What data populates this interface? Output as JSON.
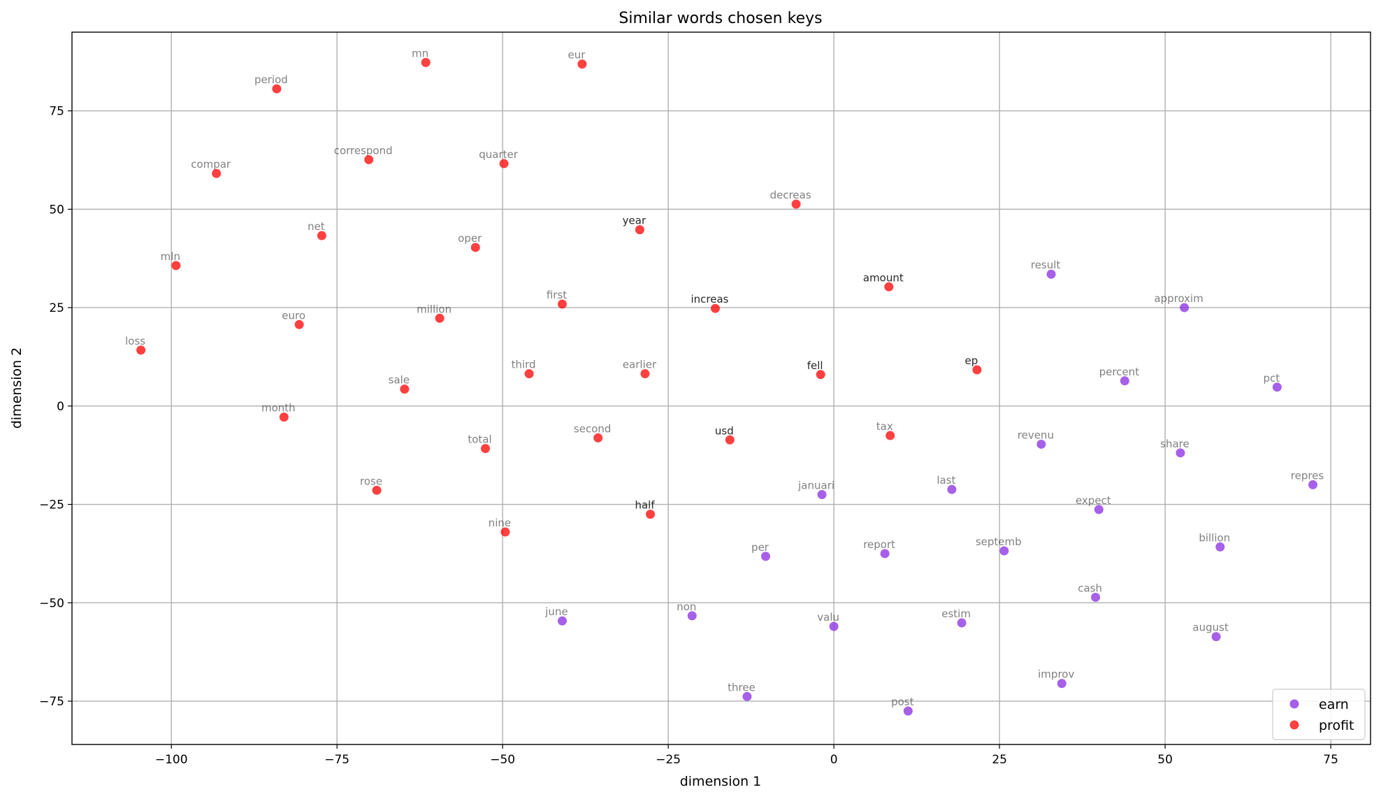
{
  "chart_data": {
    "type": "scatter",
    "title": "Similar words chosen keys",
    "xlabel": "dimension 1",
    "ylabel": "dimension 2",
    "xlim": [
      -115,
      81
    ],
    "ylim": [
      -86,
      95
    ],
    "xticks": [
      -100,
      -75,
      -50,
      -25,
      0,
      25,
      50,
      75
    ],
    "yticks": [
      -75,
      -50,
      -25,
      0,
      25,
      50,
      75
    ],
    "xtick_labels": [
      "−100",
      "−75",
      "−50",
      "−25",
      "0",
      "25",
      "50",
      "75"
    ],
    "ytick_labels": [
      "−75",
      "−50",
      "−25",
      "0",
      "25",
      "50",
      "75"
    ],
    "grid": true,
    "legend": {
      "placement": "lower-right"
    },
    "series": [
      {
        "name": "earn",
        "color": "#8a2be2",
        "points": [
          {
            "label": "result",
            "x": 32.8,
            "y": 33.5
          },
          {
            "label": "approxim",
            "x": 52.9,
            "y": 25.0
          },
          {
            "label": "percent",
            "x": 43.9,
            "y": 6.4
          },
          {
            "label": "pct",
            "x": 66.9,
            "y": 4.8
          },
          {
            "label": "revenu",
            "x": 31.3,
            "y": -9.7
          },
          {
            "label": "share",
            "x": 52.3,
            "y": -11.9
          },
          {
            "label": "repres",
            "x": 72.3,
            "y": -20.0
          },
          {
            "label": "januari",
            "x": -1.8,
            "y": -22.5
          },
          {
            "label": "last",
            "x": 17.8,
            "y": -21.2
          },
          {
            "label": "expect",
            "x": 40.0,
            "y": -26.3
          },
          {
            "label": "per",
            "x": -10.3,
            "y": -38.2
          },
          {
            "label": "report",
            "x": 7.7,
            "y": -37.5
          },
          {
            "label": "septemb",
            "x": 25.7,
            "y": -36.8
          },
          {
            "label": "billion",
            "x": 58.3,
            "y": -35.8
          },
          {
            "label": "cash",
            "x": 39.5,
            "y": -48.6
          },
          {
            "label": "june",
            "x": -41.0,
            "y": -54.6
          },
          {
            "label": "non",
            "x": -21.4,
            "y": -53.3
          },
          {
            "label": "valu",
            "x": 0.0,
            "y": -56.0
          },
          {
            "label": "estim",
            "x": 19.3,
            "y": -55.1
          },
          {
            "label": "august",
            "x": 57.7,
            "y": -58.6
          },
          {
            "label": "improv",
            "x": 34.4,
            "y": -70.5
          },
          {
            "label": "three",
            "x": -13.1,
            "y": -73.8
          },
          {
            "label": "post",
            "x": 11.2,
            "y": -77.5
          }
        ]
      },
      {
        "name": "profit",
        "color": "#ff0000",
        "points": [
          {
            "label": "mn",
            "x": -61.6,
            "y": 87.3
          },
          {
            "label": "eur",
            "x": -38.0,
            "y": 86.9
          },
          {
            "label": "period",
            "x": -84.1,
            "y": 80.6
          },
          {
            "label": "correspond",
            "x": -70.2,
            "y": 62.6
          },
          {
            "label": "quarter",
            "x": -49.8,
            "y": 61.6
          },
          {
            "label": "compar",
            "x": -93.2,
            "y": 59.1
          },
          {
            "label": "decreas",
            "x": -5.7,
            "y": 51.3
          },
          {
            "label": "net",
            "x": -77.3,
            "y": 43.3
          },
          {
            "label": "oper",
            "x": -54.1,
            "y": 40.3
          },
          {
            "label": "year",
            "x": -29.3,
            "y": 44.8
          },
          {
            "label": "mln",
            "x": -99.3,
            "y": 35.7
          },
          {
            "label": "amount",
            "x": 8.3,
            "y": 30.3
          },
          {
            "label": "first",
            "x": -41.0,
            "y": 25.9
          },
          {
            "label": "increas",
            "x": -17.9,
            "y": 24.8
          },
          {
            "label": "million",
            "x": -59.5,
            "y": 22.3
          },
          {
            "label": "euro",
            "x": -80.7,
            "y": 20.7
          },
          {
            "label": "loss",
            "x": -104.6,
            "y": 14.2
          },
          {
            "label": "third",
            "x": -46.0,
            "y": 8.2
          },
          {
            "label": "earlier",
            "x": -28.5,
            "y": 8.2
          },
          {
            "label": "fell",
            "x": -2.0,
            "y": 8.0
          },
          {
            "label": "ep",
            "x": 21.6,
            "y": 9.2
          },
          {
            "label": "sale",
            "x": -64.8,
            "y": 4.3
          },
          {
            "label": "month",
            "x": -83.0,
            "y": -2.8
          },
          {
            "label": "second",
            "x": -35.6,
            "y": -8.1
          },
          {
            "label": "usd",
            "x": -15.7,
            "y": -8.6
          },
          {
            "label": "tax",
            "x": 8.5,
            "y": -7.5
          },
          {
            "label": "total",
            "x": -52.6,
            "y": -10.8
          },
          {
            "label": "rose",
            "x": -69.0,
            "y": -21.4
          },
          {
            "label": "half",
            "x": -27.7,
            "y": -27.5
          },
          {
            "label": "nine",
            "x": -49.6,
            "y": -32.0
          }
        ]
      }
    ],
    "highlighted_labels": [
      "year",
      "amount",
      "increas",
      "fell",
      "ep",
      "usd",
      "half"
    ]
  }
}
